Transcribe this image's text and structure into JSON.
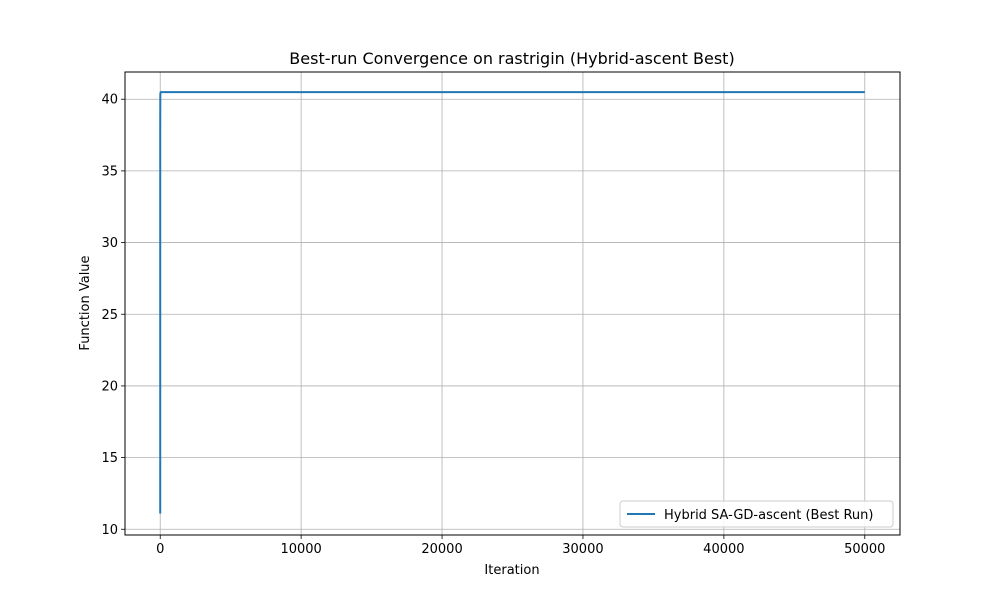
{
  "chart_data": {
    "type": "line",
    "title": "Best-run Convergence on rastrigin (Hybrid-ascent Best)",
    "xlabel": "Iteration",
    "ylabel": "Function Value",
    "xlim": [
      -2500,
      52500
    ],
    "ylim": [
      9.6,
      41.9
    ],
    "x_ticks": [
      0,
      10000,
      20000,
      30000,
      40000,
      50000
    ],
    "y_ticks": [
      10,
      15,
      20,
      25,
      30,
      35,
      40
    ],
    "grid": true,
    "legend_position": "lower-right",
    "series": [
      {
        "name": "Hybrid SA-GD-ascent (Best Run)",
        "color": "#1f77b4",
        "x": [
          0,
          0,
          0,
          0,
          0,
          5,
          10,
          20,
          40,
          80,
          150,
          300,
          600,
          1000,
          1500,
          2000,
          3000,
          5000,
          8000,
          10000,
          15000,
          20000,
          25000,
          30000,
          35000,
          40000,
          45000,
          50000
        ],
        "y": [
          11.1,
          17.3,
          13.5,
          30.0,
          38.0,
          40.2,
          40.4,
          40.45,
          40.5,
          40.5,
          40.5,
          40.5,
          40.5,
          40.5,
          40.5,
          40.5,
          40.5,
          40.5,
          40.5,
          40.5,
          40.5,
          40.5,
          40.5,
          40.5,
          40.5,
          40.5,
          40.5,
          40.5
        ]
      }
    ]
  }
}
